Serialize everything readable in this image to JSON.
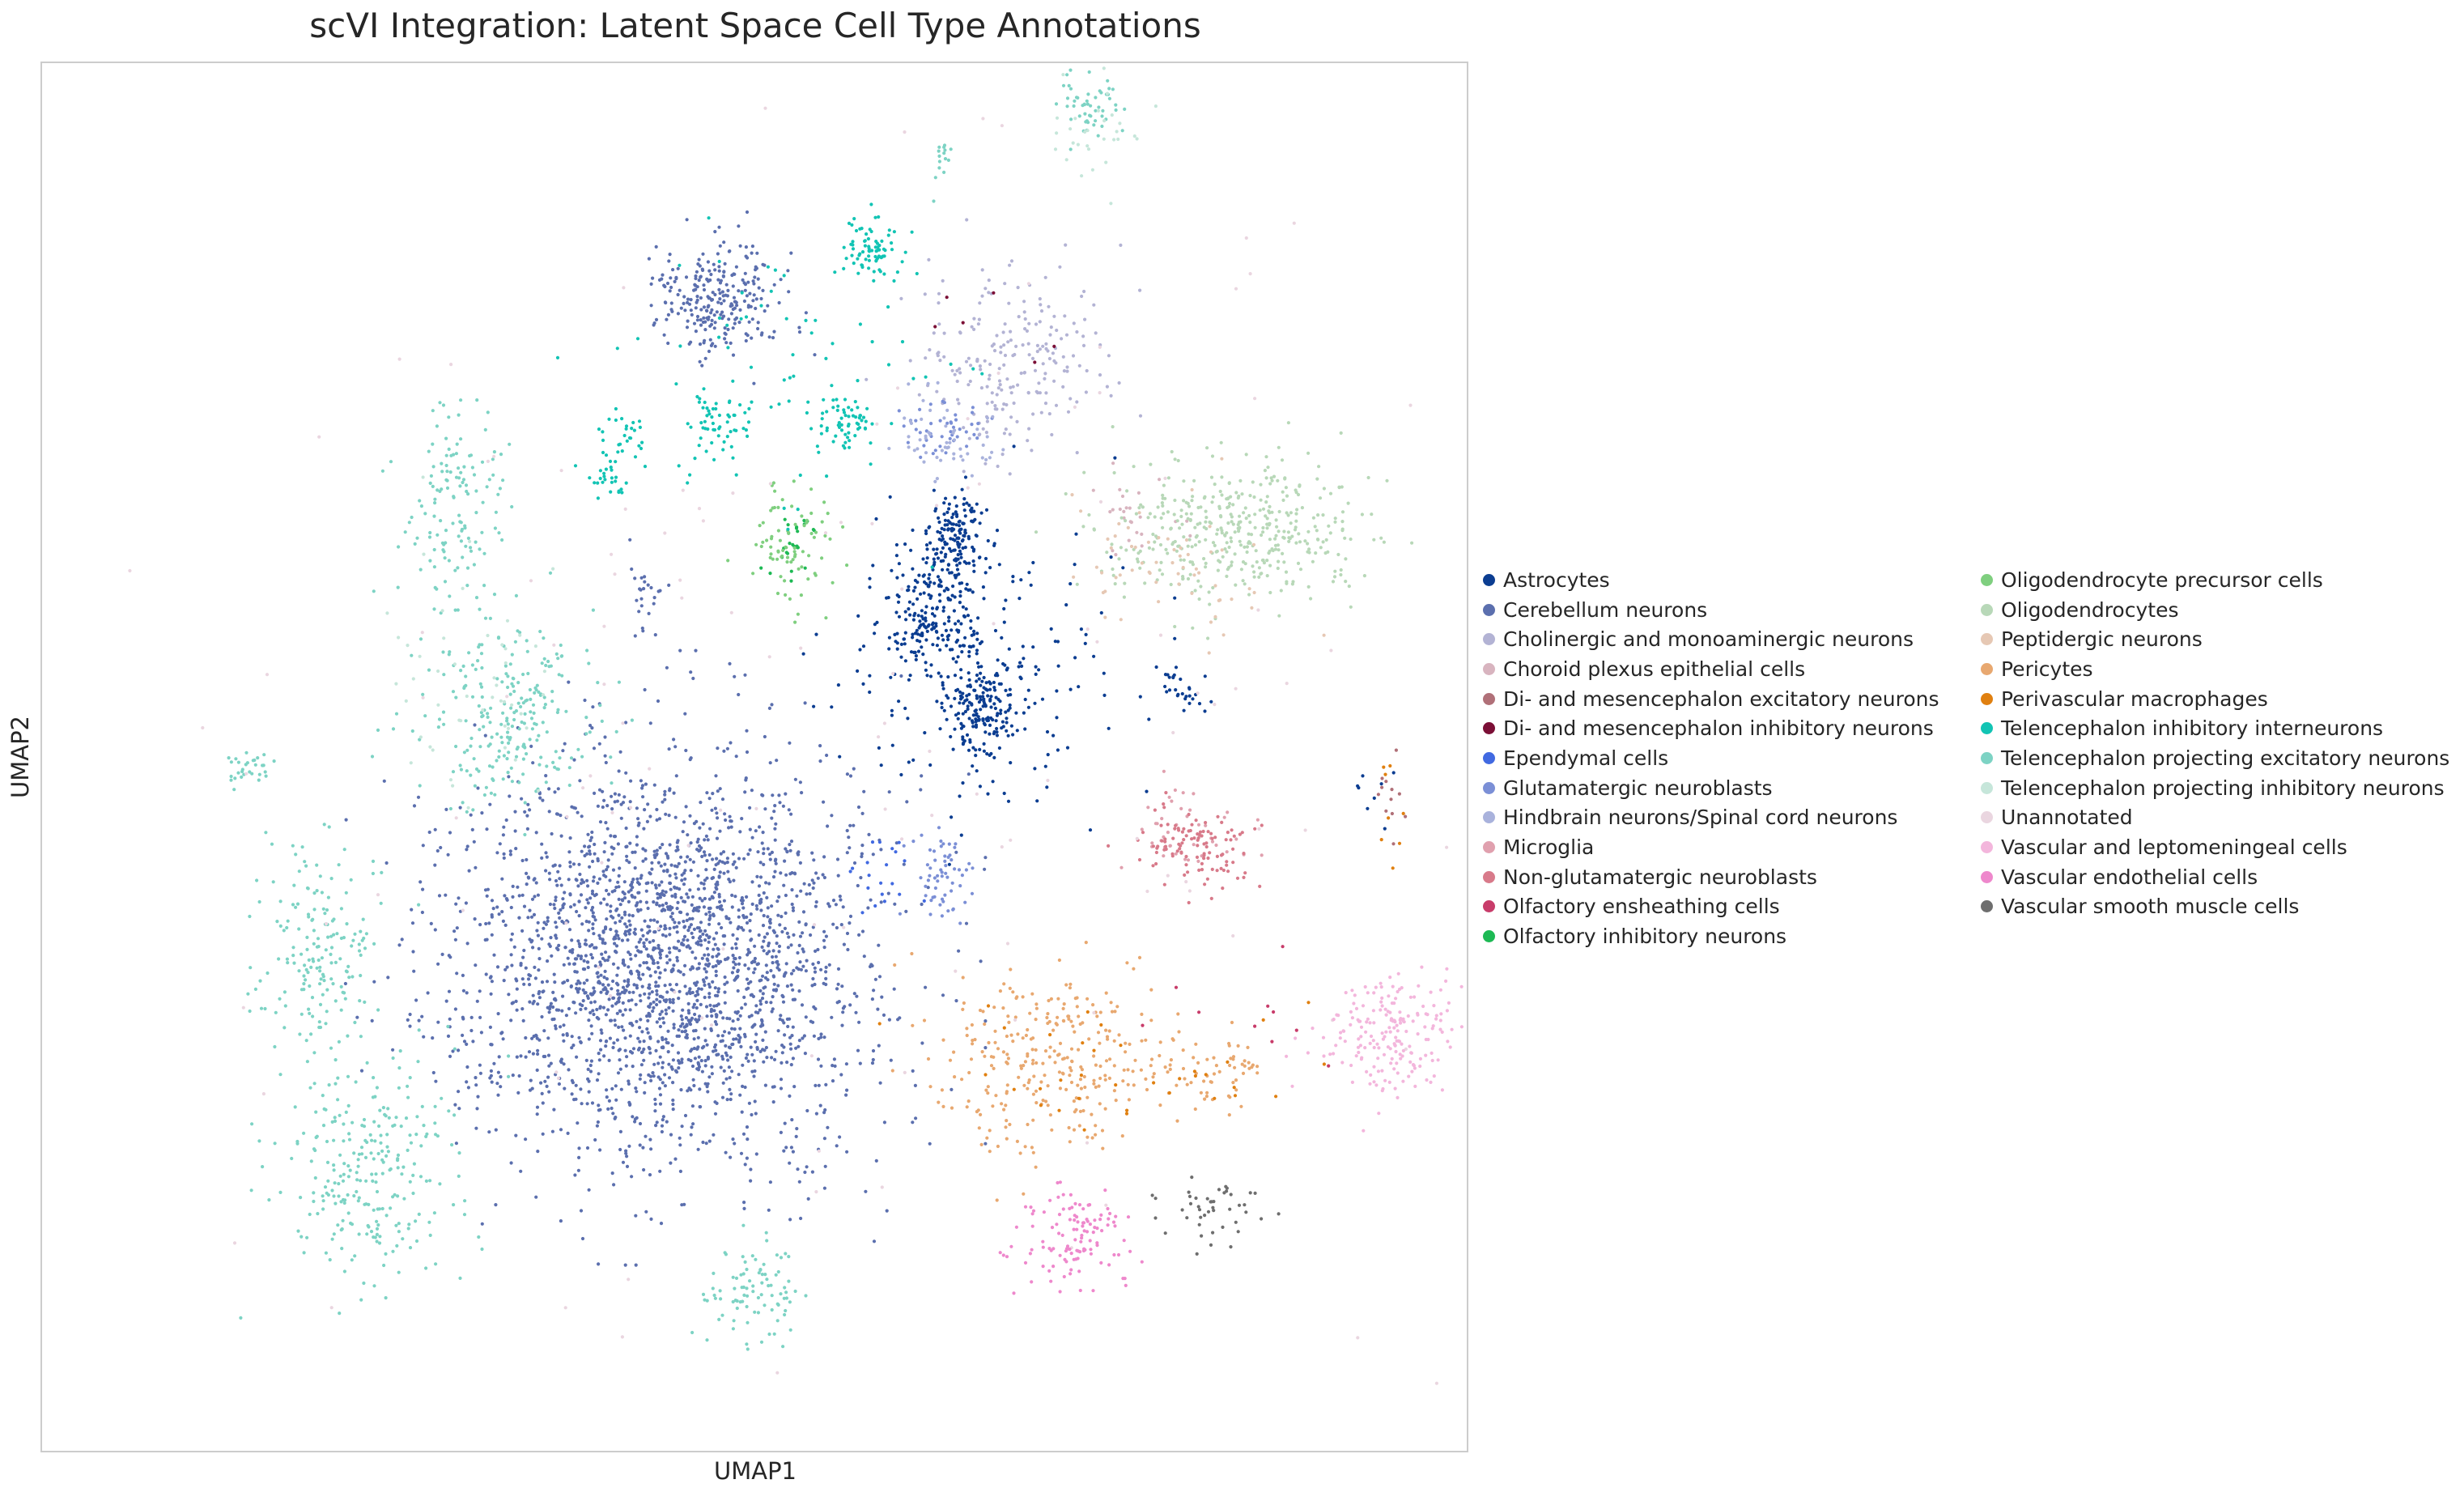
{
  "chart_data": {
    "type": "scatter",
    "title": "scVI Integration: Latent Space Cell Type Annotations",
    "xlabel": "UMAP1",
    "ylabel": "UMAP2",
    "xlim": [
      -2,
      17
    ],
    "ylim": [
      -2,
      17
    ],
    "grid": false,
    "legend_placement": "right, outside plot, two columns",
    "series": [
      {
        "name": "Astrocytes",
        "color": "#0b3d91",
        "clusters": [
          {
            "x": [
              9.8,
              10.6
            ],
            "y": [
              9.7,
              11.2
            ],
            "n": 160
          },
          {
            "x": [
              9.3,
              10.4
            ],
            "y": [
              8.5,
              10.2
            ],
            "n": 160
          },
          {
            "x": [
              10.1,
              11.0
            ],
            "y": [
              7.5,
              8.8
            ],
            "n": 140
          },
          {
            "x": [
              8.4,
              12.2
            ],
            "y": [
              6.8,
              10.8
            ],
            "n": 240
          },
          {
            "x": [
              12.8,
              13.6
            ],
            "y": [
              8.0,
              8.7
            ],
            "n": 30
          },
          {
            "x": [
              15.5,
              16.0
            ],
            "y": [
              6.6,
              7.5
            ],
            "n": 8
          }
        ]
      },
      {
        "name": "Cerebellum neurons",
        "color": "#5b6fae",
        "clusters": [
          {
            "x": [
              3.4,
              9.2
            ],
            "y": [
              1.9,
              7.6
            ],
            "n": 2400
          },
          {
            "x": [
              6.2,
              7.9
            ],
            "y": [
              12.9,
              14.6
            ],
            "n": 260
          },
          {
            "x": [
              5.8,
              6.3
            ],
            "y": [
              9.1,
              10.5
            ],
            "n": 25
          }
        ]
      },
      {
        "name": "Cholinergic and monoaminergic neurons",
        "color": "#b3b3d4",
        "clusters": [
          {
            "x": [
              9.6,
              12.2
            ],
            "y": [
              11.6,
              14.3
            ],
            "n": 220
          }
        ]
      },
      {
        "name": "Choroid plexus epithelial cells",
        "color": "#d8b4bf",
        "clusters": [
          {
            "x": [
              11.8,
              13.2
            ],
            "y": [
              10.2,
              11.5
            ],
            "n": 25
          }
        ]
      },
      {
        "name": "Di- and mesencephalon excitatory neurons",
        "color": "#b07078",
        "clusters": [
          {
            "x": [
              15.6,
              16.3
            ],
            "y": [
              6.3,
              7.6
            ],
            "n": 12
          }
        ]
      },
      {
        "name": "Di- and mesencephalon inhibitory neurons",
        "color": "#7b0f36",
        "clusters": [
          {
            "x": [
              10.0,
              12.5
            ],
            "y": [
              12.5,
              14.0
            ],
            "n": 6
          }
        ]
      },
      {
        "name": "Ependymal cells",
        "color": "#4169e1",
        "clusters": [
          {
            "x": [
              8.6,
              9.8
            ],
            "y": [
              5.0,
              6.5
            ],
            "n": 20
          }
        ]
      },
      {
        "name": "Glutamatergic neuroblasts",
        "color": "#7b8fd6",
        "clusters": [
          {
            "x": [
              9.6,
              10.6
            ],
            "y": [
              5.2,
              6.5
            ],
            "n": 60
          },
          {
            "x": [
              9.4,
              10.6
            ],
            "y": [
              11.6,
              12.4
            ],
            "n": 45
          }
        ]
      },
      {
        "name": "Hindbrain neurons/Spinal cord neurons",
        "color": "#a9b2dc",
        "clusters": [
          {
            "x": [
              9.4,
              10.8
            ],
            "y": [
              11.3,
              12.6
            ],
            "n": 55
          }
        ]
      },
      {
        "name": "Microglia",
        "color": "#e0a0ae",
        "clusters": [
          {
            "x": [
              12.3,
              14.1
            ],
            "y": [
              5.8,
              7.2
            ],
            "n": 45
          }
        ]
      },
      {
        "name": "Non-glutamatergic neuroblasts",
        "color": "#d87a8a",
        "clusters": [
          {
            "x": [
              12.6,
              14.2
            ],
            "y": [
              5.6,
              6.9
            ],
            "n": 110
          }
        ]
      },
      {
        "name": "Olfactory ensheathing cells",
        "color": "#c83c6a",
        "clusters": [
          {
            "x": [
              13.2,
              15.4
            ],
            "y": [
              3.0,
              5.0
            ],
            "n": 10
          }
        ]
      },
      {
        "name": "Olfactory inhibitory neurons",
        "color": "#1db954",
        "clusters": [
          {
            "x": [
              7.6,
              8.4
            ],
            "y": [
              9.9,
              11.0
            ],
            "n": 25
          }
        ]
      },
      {
        "name": "Oligodendrocyte precursor cells",
        "color": "#7fcf7f",
        "clusters": [
          {
            "x": [
              7.4,
              8.6
            ],
            "y": [
              9.6,
              11.3
            ],
            "n": 80
          }
        ]
      },
      {
        "name": "Oligodendrocytes",
        "color": "#b8d8b8",
        "clusters": [
          {
            "x": [
              12.0,
              15.8
            ],
            "y": [
              9.6,
              11.6
            ],
            "n": 420
          }
        ]
      },
      {
        "name": "Peptidergic neurons",
        "color": "#e6c8b4",
        "clusters": [
          {
            "x": [
              11.6,
              14.6
            ],
            "y": [
              9.0,
              11.2
            ],
            "n": 60
          }
        ]
      },
      {
        "name": "Pericytes",
        "color": "#e8a870",
        "clusters": [
          {
            "x": [
              9.8,
              12.8
            ],
            "y": [
              2.0,
              4.6
            ],
            "n": 280
          },
          {
            "x": [
              12.4,
              14.6
            ],
            "y": [
              2.6,
              3.8
            ],
            "n": 70
          }
        ]
      },
      {
        "name": "Perivascular macrophages",
        "color": "#e08010",
        "clusters": [
          {
            "x": [
              10.2,
              15.0
            ],
            "y": [
              2.4,
              4.4
            ],
            "n": 35
          },
          {
            "x": [
              15.7,
              16.2
            ],
            "y": [
              6.0,
              7.6
            ],
            "n": 8
          }
        ]
      },
      {
        "name": "Telencephalon inhibitory interneurons",
        "color": "#12c4b4",
        "clusters": [
          {
            "x": [
              8.6,
              9.5
            ],
            "y": [
              13.9,
              14.9
            ],
            "n": 80
          },
          {
            "x": [
              8.3,
              9.2
            ],
            "y": [
              11.7,
              12.5
            ],
            "n": 60
          },
          {
            "x": [
              6.6,
              7.6
            ],
            "y": [
              11.6,
              12.6
            ],
            "n": 50
          },
          {
            "x": [
              5.3,
              6.2
            ],
            "y": [
              11.4,
              12.4
            ],
            "n": 30
          },
          {
            "x": [
              5.2,
              5.8
            ],
            "y": [
              10.9,
              11.6
            ],
            "n": 25
          },
          {
            "x": [
              5.2,
              10.2
            ],
            "y": [
              10.4,
              15.2
            ],
            "n": 70
          }
        ]
      },
      {
        "name": "Telencephalon projecting excitatory neurons",
        "color": "#7dd3c4",
        "clusters": [
          {
            "x": [
              2.8,
              4.2
            ],
            "y": [
              9.4,
              12.5
            ],
            "n": 140
          },
          {
            "x": [
              3.0,
              5.5
            ],
            "y": [
              6.8,
              9.4
            ],
            "n": 240
          },
          {
            "x": [
              0.3,
              1.2
            ],
            "y": [
              7.0,
              7.6
            ],
            "n": 30
          },
          {
            "x": [
              0.8,
              2.6
            ],
            "y": [
              3.0,
              6.6
            ],
            "n": 180
          },
          {
            "x": [
              1.0,
              3.6
            ],
            "y": [
              0.2,
              3.4
            ],
            "n": 260
          },
          {
            "x": [
              6.6,
              8.1
            ],
            "y": [
              -0.5,
              0.9
            ],
            "n": 90
          },
          {
            "x": [
              11.5,
              12.4
            ],
            "y": [
              15.9,
              17.0
            ],
            "n": 55
          },
          {
            "x": [
              9.8,
              10.2
            ],
            "y": [
              15.3,
              16.1
            ],
            "n": 15
          }
        ]
      },
      {
        "name": "Telencephalon projecting inhibitory neurons",
        "color": "#c6e6da",
        "clusters": [
          {
            "x": [
              11.4,
              12.6
            ],
            "y": [
              15.0,
              16.8
            ],
            "n": 30
          },
          {
            "x": [
              2.5,
              5.0
            ],
            "y": [
              6.5,
              10.5
            ],
            "n": 50
          }
        ]
      },
      {
        "name": "Unannotated",
        "color": "#ead6e0",
        "clusters": [
          {
            "x": [
              -0.5,
              16.5
            ],
            "y": [
              -0.5,
              16.0
            ],
            "n": 150
          }
        ]
      },
      {
        "name": "Vascular and leptomeningeal cells",
        "color": "#f3b6dc",
        "clusters": [
          {
            "x": [
              15.0,
              17.0
            ],
            "y": [
              2.8,
              4.6
            ],
            "n": 200
          }
        ]
      },
      {
        "name": "Vascular endothelial cells",
        "color": "#ee88cc",
        "clusters": [
          {
            "x": [
              11.0,
              12.6
            ],
            "y": [
              0.2,
              1.6
            ],
            "n": 120
          }
        ]
      },
      {
        "name": "Vascular smooth muscle cells",
        "color": "#6e6e6e",
        "clusters": [
          {
            "x": [
              13.0,
              14.3
            ],
            "y": [
              0.8,
              1.8
            ],
            "n": 45
          }
        ]
      }
    ]
  }
}
